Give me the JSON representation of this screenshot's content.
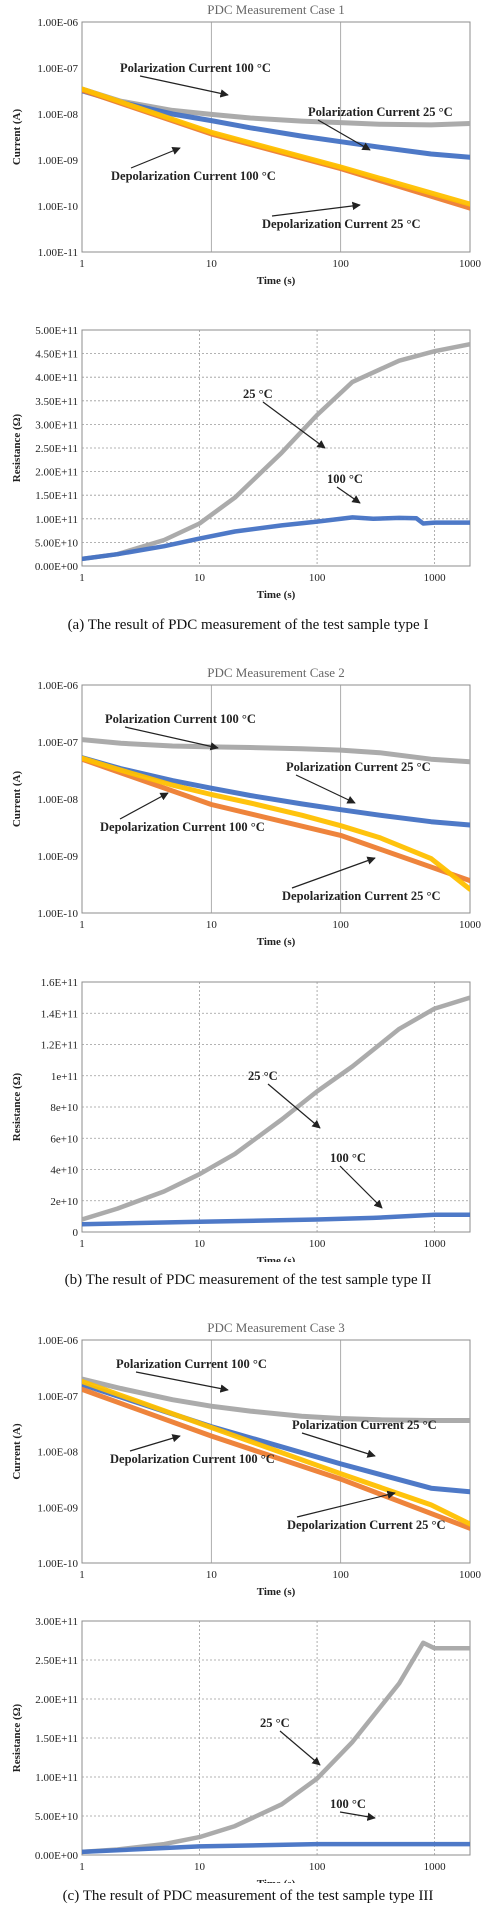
{
  "captions": [
    "(a) The result of PDC measurement of the test sample type I",
    "(b) The result of PDC measurement of the test sample type II",
    "(c) The result of PDC measurement of the test sample type III"
  ],
  "colors": {
    "polarization_100": "#a6a6a6",
    "polarization_25": "#4472c4",
    "depolarization_100": "#ed7d31",
    "depolarization_25": "#ffc000",
    "resistance_25": "#a6a6a6",
    "resistance_100": "#4472c4"
  },
  "chart_data": [
    {
      "id": "a-current",
      "type": "line",
      "title": "PDC Measurement Case 1",
      "xlabel": "Time (s)",
      "ylabel": "Current (A)",
      "xscale": "log",
      "yscale": "log",
      "xlim": [
        1,
        1000
      ],
      "ylim": [
        1e-11,
        1e-06
      ],
      "xticks": [
        "1",
        "10",
        "100",
        "1000"
      ],
      "yticks": [
        "1.00E-11",
        "1.00E-10",
        "1.00E-09",
        "1.00E-08",
        "1.00E-07",
        "1.00E-06"
      ],
      "grid": "vertical",
      "series": [
        {
          "name": "Polarization Current 100 °C",
          "color": "#a6a6a6",
          "x": [
            1,
            2,
            5,
            10,
            20,
            50,
            100,
            200,
            500,
            1000
          ],
          "y": [
            3.5e-08,
            1.9e-08,
            1.2e-08,
            9.8e-09,
            8.2e-09,
            7e-09,
            6.5e-09,
            6e-09,
            5.8e-09,
            6.2e-09
          ]
        },
        {
          "name": "Polarization Current 25 °C",
          "color": "#4472c4",
          "x": [
            1,
            2,
            5,
            10,
            20,
            50,
            100,
            200,
            500,
            1000
          ],
          "y": [
            3.2e-08,
            1.8e-08,
            1e-08,
            7.2e-09,
            5e-09,
            3.3e-09,
            2.5e-09,
            1.9e-09,
            1.35e-09,
            1.15e-09
          ]
        },
        {
          "name": "Depolarization Current 100 °C",
          "color": "#ed7d31",
          "x": [
            1,
            10,
            100,
            1000
          ],
          "y": [
            3.3e-08,
            3.7e-09,
            6.5e-10,
            9e-11
          ]
        },
        {
          "name": "Depolarization Current 25 °C",
          "color": "#ffc000",
          "x": [
            1,
            10,
            100,
            1000
          ],
          "y": [
            3.5e-08,
            4e-09,
            7e-10,
            1.1e-10
          ]
        }
      ],
      "annotations": [
        {
          "text": "Polarization  Current 100 °C",
          "series": 0
        },
        {
          "text": "Polarization  Current 25 °C",
          "series": 1
        },
        {
          "text": "Depolarization  Current 100 °C",
          "series": 2
        },
        {
          "text": "Depolarization  Current 25 °C",
          "series": 3
        }
      ]
    },
    {
      "id": "a-resistance",
      "type": "line",
      "title": "",
      "xlabel": "Time (s)",
      "ylabel": "Resistance (Ω)",
      "xscale": "log",
      "yscale": "linear",
      "xlim": [
        1,
        2000
      ],
      "ylim": [
        0,
        500000000000.0
      ],
      "xticks": [
        "1",
        "10",
        "100",
        "1000"
      ],
      "yticks": [
        "0.00E+00",
        "5.00E+10",
        "1.00E+11",
        "1.50E+11",
        "2.00E+11",
        "2.50E+11",
        "3.00E+11",
        "3.50E+11",
        "4.00E+11",
        "4.50E+11",
        "5.00E+11"
      ],
      "grid": "both-dashed",
      "series": [
        {
          "name": "25 °C",
          "color": "#a6a6a6",
          "x": [
            1,
            2,
            5,
            10,
            20,
            50,
            100,
            200,
            500,
            1000,
            2000
          ],
          "y": [
            15000000000.0,
            25000000000.0,
            55000000000.0,
            90000000000.0,
            145000000000.0,
            240000000000.0,
            320000000000.0,
            390000000000.0,
            435000000000.0,
            455000000000.0,
            470000000000.0
          ]
        },
        {
          "name": "100 °C",
          "color": "#4472c4",
          "x": [
            1,
            2,
            5,
            10,
            20,
            50,
            100,
            200,
            300,
            500,
            700,
            800,
            1000,
            2000
          ],
          "y": [
            15000000000.0,
            25000000000.0,
            42000000000.0,
            58000000000.0,
            73000000000.0,
            86000000000.0,
            94000000000.0,
            103000000000.0,
            100000000000.0,
            102000000000.0,
            101000000000.0,
            90000000000.0,
            92000000000.0,
            92000000000.0
          ]
        }
      ],
      "annotations": [
        {
          "text": "25 °C",
          "series": 0
        },
        {
          "text": "100 °C",
          "series": 1
        }
      ]
    },
    {
      "id": "b-current",
      "type": "line",
      "title": "PDC Measurement Case 2",
      "xlabel": "Time (s)",
      "ylabel": "Current (A)",
      "xscale": "log",
      "yscale": "log",
      "xlim": [
        1,
        1000
      ],
      "ylim": [
        1e-10,
        1e-06
      ],
      "xticks": [
        "1",
        "10",
        "100",
        "1000"
      ],
      "yticks": [
        "1.00E-10",
        "1.00E-09",
        "1.00E-08",
        "1.00E-07",
        "1.00E-06"
      ],
      "grid": "vertical",
      "series": [
        {
          "name": "Polarization Current 100 °C",
          "color": "#a6a6a6",
          "x": [
            1,
            2,
            5,
            10,
            20,
            50,
            100,
            200,
            500,
            1000
          ],
          "y": [
            1.1e-07,
            9.5e-08,
            8.5e-08,
            8.2e-08,
            8e-08,
            7.6e-08,
            7.2e-08,
            6.5e-08,
            5e-08,
            4.5e-08
          ]
        },
        {
          "name": "Polarization Current 25 °C",
          "color": "#4472c4",
          "x": [
            1,
            2,
            5,
            10,
            20,
            50,
            100,
            200,
            500,
            1000
          ],
          "y": [
            5.3e-08,
            3.4e-08,
            2.1e-08,
            1.55e-08,
            1.15e-08,
            8.2e-09,
            6.5e-09,
            5.2e-09,
            4e-09,
            3.5e-09
          ]
        },
        {
          "name": "Depolarization Current 100 °C",
          "color": "#ed7d31",
          "x": [
            1,
            10,
            100,
            1000
          ],
          "y": [
            5e-08,
            8e-09,
            2.3e-09,
            3.7e-10
          ]
        },
        {
          "name": "Depolarization Current 25 °C",
          "color": "#ffc000",
          "x": [
            1,
            2,
            5,
            10,
            20,
            50,
            100,
            200,
            500,
            1000
          ],
          "y": [
            5.2e-08,
            3.2e-08,
            1.75e-08,
            1.2e-08,
            8.5e-09,
            5.2e-09,
            3.4e-09,
            2.1e-09,
            9e-10,
            2.6e-10
          ]
        }
      ],
      "annotations": [
        {
          "text": "Polarization  Current 100 °C",
          "series": 0
        },
        {
          "text": "Polarization  Current 25 °C",
          "series": 1
        },
        {
          "text": "Depolarization  Current 100 °C",
          "series": 2
        },
        {
          "text": "Depolarization  Current 25 °C",
          "series": 3
        }
      ]
    },
    {
      "id": "b-resistance",
      "type": "line",
      "title": "",
      "xlabel": "Time (s)",
      "ylabel": "Resistance (Ω)",
      "xscale": "log",
      "yscale": "linear",
      "xlim": [
        1,
        2000
      ],
      "ylim": [
        0,
        160000000000.0
      ],
      "xticks": [
        "1",
        "10",
        "100",
        "1000"
      ],
      "yticks": [
        "0",
        "2e+10",
        "4e+10",
        "6e+10",
        "8e+10",
        "1e+11",
        "1.2E+11",
        "1.4E+11",
        "1.6E+11"
      ],
      "grid": "both-dashed",
      "series": [
        {
          "name": "25 °C",
          "color": "#a6a6a6",
          "x": [
            1,
            2,
            5,
            10,
            20,
            50,
            100,
            200,
            500,
            1000,
            2000
          ],
          "y": [
            8000000000.0,
            15000000000.0,
            26000000000.0,
            37000000000.0,
            50000000000.0,
            72000000000.0,
            90000000000.0,
            106000000000.0,
            130000000000.0,
            143000000000.0,
            150000000000.0
          ]
        },
        {
          "name": "100 °C",
          "color": "#4472c4",
          "x": [
            1,
            10,
            100,
            300,
            1000,
            2000
          ],
          "y": [
            5000000000.0,
            6500000000.0,
            8000000000.0,
            9000000000.0,
            11000000000.0,
            11000000000.0
          ]
        }
      ],
      "annotations": [
        {
          "text": "25 °C",
          "series": 0
        },
        {
          "text": "100 °C",
          "series": 1
        }
      ]
    },
    {
      "id": "c-current",
      "type": "line",
      "title": "PDC Measurement Case 3",
      "xlabel": "Time (s)",
      "ylabel": "Current (A)",
      "xscale": "log",
      "yscale": "log",
      "xlim": [
        1,
        1000
      ],
      "ylim": [
        1e-10,
        1e-06
      ],
      "xticks": [
        "1",
        "10",
        "100",
        "1000"
      ],
      "yticks": [
        "1.00E-10",
        "1.00E-09",
        "1.00E-08",
        "1.00E-07",
        "1.00E-06"
      ],
      "grid": "vertical",
      "series": [
        {
          "name": "Polarization Current 100 °C",
          "color": "#a6a6a6",
          "x": [
            1,
            2,
            5,
            10,
            20,
            50,
            100,
            200,
            500,
            1000,
            3000
          ],
          "y": [
            2e-07,
            1.35e-07,
            8.5e-08,
            6.5e-08,
            5.3e-08,
            4.3e-08,
            3.9e-08,
            3.7e-08,
            3.6e-08,
            3.6e-08,
            3.6e-08
          ]
        },
        {
          "name": "Polarization Current 25 °C",
          "color": "#4472c4",
          "x": [
            1,
            10,
            100,
            500,
            1000,
            3000
          ],
          "y": [
            1.6e-07,
            2.8e-08,
            6e-09,
            2.2e-09,
            1.9e-09,
            1.9e-09
          ]
        },
        {
          "name": "Depolarization Current 100 °C",
          "color": "#ed7d31",
          "x": [
            1,
            10,
            100,
            1000,
            3000
          ],
          "y": [
            1.3e-07,
            1.9e-08,
            3.2e-09,
            4.2e-10,
            4e-10
          ]
        },
        {
          "name": "Depolarization Current 25 °C",
          "color": "#ffc000",
          "x": [
            1,
            10,
            100,
            500,
            1000,
            2000
          ],
          "y": [
            1.8e-07,
            2.7e-08,
            4e-09,
            1.1e-09,
            5e-10,
            3e-10
          ]
        }
      ],
      "annotations": [
        {
          "text": "Polarization  Current 100 °C",
          "series": 0
        },
        {
          "text": "Polarization  Current 25 °C",
          "series": 1
        },
        {
          "text": "Depolarization Current 100 °C",
          "series": 2
        },
        {
          "text": "Depolarization Current 25 °C",
          "series": 3
        }
      ]
    },
    {
      "id": "c-resistance",
      "type": "line",
      "title": "",
      "xlabel": "Time (s)",
      "ylabel": "Resistance (Ω)",
      "xscale": "log",
      "yscale": "linear",
      "xlim": [
        1,
        2000
      ],
      "ylim": [
        0,
        300000000000.0
      ],
      "xticks": [
        "1",
        "10",
        "100",
        "1000"
      ],
      "yticks": [
        "0.00E+00",
        "5.00E+10",
        "1.00E+11",
        "1.50E+11",
        "2.00E+11",
        "2.50E+11",
        "3.00E+11"
      ],
      "grid": "both-dashed",
      "series": [
        {
          "name": "25 °C",
          "color": "#a6a6a6",
          "x": [
            1,
            2,
            5,
            10,
            20,
            50,
            100,
            200,
            500,
            800,
            1000,
            2000
          ],
          "y": [
            4000000000.0,
            7000000000.0,
            14000000000.0,
            23000000000.0,
            37000000000.0,
            65000000000.0,
            98000000000.0,
            145000000000.0,
            220000000000.0,
            272000000000.0,
            265000000000.0,
            265000000000.0
          ]
        },
        {
          "name": "100 °C",
          "color": "#4472c4",
          "x": [
            1,
            10,
            100,
            1000,
            2000
          ],
          "y": [
            4000000000.0,
            11000000000.0,
            14000000000.0,
            14000000000.0,
            14000000000.0
          ]
        }
      ],
      "annotations": [
        {
          "text": "25 °C",
          "series": 0
        },
        {
          "text": "100 °C",
          "series": 1
        }
      ]
    }
  ]
}
